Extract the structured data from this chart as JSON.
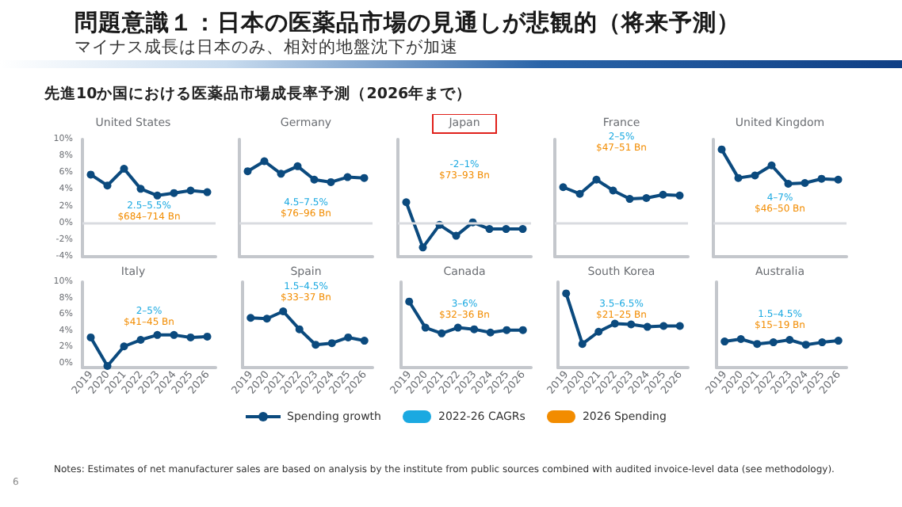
{
  "chart_data": [
    {
      "type": "other",
      "title": "問題意識１：日本の医薬品市場の見通しが悲観的（将来予測）",
      "subtitle": "マイナス成長は日本のみ、相対的地盤沈下が加速",
      "annotations": [
        "先進10か国における医薬品市場成長率予測（2026年まで）"
      ]
    },
    {
      "type": "line",
      "title": "United States",
      "categories": [
        "2019",
        "2020",
        "2021",
        "2022",
        "2023",
        "2024",
        "2025",
        "2026"
      ],
      "series": [
        {
          "color": "#0b4a7e",
          "values": [
            5.8,
            4.5,
            6.5,
            4.1,
            3.3,
            3.6,
            3.9,
            3.7
          ]
        }
      ],
      "ylim": [
        -4,
        10
      ],
      "yticks": [
        {
          "value": -4,
          "label": "-4%"
        },
        {
          "value": -2,
          "label": "-2%"
        },
        {
          "value": 0,
          "label": "0%"
        },
        {
          "value": 2,
          "label": "2%"
        },
        {
          "value": 4,
          "label": "4%"
        },
        {
          "value": 6,
          "label": "6%"
        },
        {
          "value": 8,
          "label": "8%"
        },
        {
          "value": 10,
          "label": "10%"
        }
      ],
      "tick_labels": "y",
      "marker": "circle",
      "ref_lines": [
        {
          "axis": "y",
          "value": 0,
          "color": "#d9dbe0"
        }
      ],
      "annotations": [
        "2.5–5.5%",
        "$684–714 Bn"
      ]
    },
    {
      "type": "line",
      "title": "Germany",
      "categories": [
        "2019",
        "2020",
        "2021",
        "2022",
        "2023",
        "2024",
        "2025",
        "2026"
      ],
      "series": [
        {
          "color": "#0b4a7e",
          "values": [
            6.2,
            7.4,
            5.9,
            6.8,
            5.2,
            4.9,
            5.5,
            5.4
          ]
        }
      ],
      "ylim": [
        -4,
        10
      ],
      "tick_labels": false,
      "marker": "circle",
      "ref_lines": [
        {
          "axis": "y",
          "value": 0,
          "color": "#d9dbe0"
        }
      ],
      "annotations": [
        "4.5–7.5%",
        "$76–96 Bn"
      ]
    },
    {
      "type": "line",
      "title": "Japan",
      "categories": [
        "2019",
        "2020",
        "2021",
        "2022",
        "2023",
        "2024",
        "2025",
        "2026"
      ],
      "series": [
        {
          "color": "#0b4a7e",
          "values": [
            2.5,
            -2.9,
            -0.2,
            -1.5,
            0.1,
            -0.7,
            -0.7,
            -0.7
          ]
        }
      ],
      "ylim": [
        -4,
        10
      ],
      "tick_labels": false,
      "marker": "circle",
      "ref_lines": [
        {
          "axis": "y",
          "value": 0,
          "color": "#d9dbe0"
        }
      ],
      "annotations": [
        "-2–1%",
        "$73–93 Bn"
      ]
    },
    {
      "type": "line",
      "title": "France",
      "categories": [
        "2019",
        "2020",
        "2021",
        "2022",
        "2023",
        "2024",
        "2025",
        "2026"
      ],
      "series": [
        {
          "color": "#0b4a7e",
          "values": [
            4.3,
            3.5,
            5.2,
            3.9,
            2.9,
            3.0,
            3.4,
            3.3
          ]
        }
      ],
      "ylim": [
        -4,
        10
      ],
      "tick_labels": false,
      "marker": "circle",
      "ref_lines": [
        {
          "axis": "y",
          "value": 0,
          "color": "#d9dbe0"
        }
      ],
      "annotations": [
        "2–5%",
        "$47–51 Bn"
      ]
    },
    {
      "type": "line",
      "title": "United Kingdom",
      "categories": [
        "2019",
        "2020",
        "2021",
        "2022",
        "2023",
        "2024",
        "2025",
        "2026"
      ],
      "series": [
        {
          "color": "#0b4a7e",
          "values": [
            8.8,
            5.4,
            5.7,
            6.9,
            4.7,
            4.8,
            5.3,
            5.2
          ]
        }
      ],
      "ylim": [
        -4,
        10
      ],
      "tick_labels": false,
      "marker": "circle",
      "ref_lines": [
        {
          "axis": "y",
          "value": 0,
          "color": "#d9dbe0"
        }
      ],
      "annotations": [
        "4–7%",
        "$46–50 Bn"
      ]
    },
    {
      "type": "line",
      "title": "Italy",
      "categories": [
        "2019",
        "2020",
        "2021",
        "2022",
        "2023",
        "2024",
        "2025",
        "2026"
      ],
      "series": [
        {
          "color": "#0b4a7e",
          "values": [
            3.2,
            -0.3,
            2.1,
            2.9,
            3.5,
            3.5,
            3.2,
            3.3
          ]
        }
      ],
      "ylim": [
        -0.5,
        10
      ],
      "yticks": [
        {
          "value": 0,
          "label": "0%"
        },
        {
          "value": 2,
          "label": "2%"
        },
        {
          "value": 4,
          "label": "4%"
        },
        {
          "value": 6,
          "label": "6%"
        },
        {
          "value": 8,
          "label": "8%"
        },
        {
          "value": 10,
          "label": "10%"
        }
      ],
      "marker": "circle",
      "annotations": [
        "2–5%",
        "$41–45 Bn"
      ]
    },
    {
      "type": "line",
      "title": "Spain",
      "categories": [
        "2019",
        "2020",
        "2021",
        "2022",
        "2023",
        "2024",
        "2025",
        "2026"
      ],
      "series": [
        {
          "color": "#0b4a7e",
          "values": [
            5.6,
            5.5,
            6.4,
            4.2,
            2.3,
            2.5,
            3.2,
            2.8
          ]
        }
      ],
      "ylim": [
        -0.5,
        10
      ],
      "tick_labels": "x",
      "marker": "circle",
      "annotations": [
        "1.5–4.5%",
        "$33–37 Bn"
      ]
    },
    {
      "type": "line",
      "title": "Canada",
      "categories": [
        "2019",
        "2020",
        "2021",
        "2022",
        "2023",
        "2024",
        "2025",
        "2026"
      ],
      "series": [
        {
          "color": "#0b4a7e",
          "values": [
            7.6,
            4.4,
            3.7,
            4.4,
            4.2,
            3.8,
            4.1,
            4.1
          ]
        }
      ],
      "ylim": [
        -0.5,
        10
      ],
      "tick_labels": "x",
      "marker": "circle",
      "annotations": [
        "3–6%",
        "$32–36 Bn"
      ]
    },
    {
      "type": "line",
      "title": "South Korea",
      "categories": [
        "2019",
        "2020",
        "2021",
        "2022",
        "2023",
        "2024",
        "2025",
        "2026"
      ],
      "series": [
        {
          "color": "#0b4a7e",
          "values": [
            8.6,
            2.4,
            3.9,
            4.9,
            4.8,
            4.5,
            4.6,
            4.6
          ]
        }
      ],
      "ylim": [
        -0.5,
        10
      ],
      "tick_labels": "x",
      "marker": "circle",
      "annotations": [
        "3.5–6.5%",
        "$21–25 Bn"
      ]
    },
    {
      "type": "line",
      "title": "Australia",
      "categories": [
        "2019",
        "2020",
        "2021",
        "2022",
        "2023",
        "2024",
        "2025",
        "2026"
      ],
      "series": [
        {
          "color": "#0b4a7e",
          "values": [
            2.7,
            3.0,
            2.4,
            2.6,
            2.9,
            2.3,
            2.6,
            2.8
          ]
        }
      ],
      "ylim": [
        -0.5,
        10
      ],
      "tick_labels": "x",
      "marker": "circle",
      "annotations": [
        "1.5–4.5%",
        "$15–19 Bn"
      ]
    },
    {
      "type": "other",
      "colors": [
        "#0b4a7e",
        "#1ba9e1",
        "#f28c00"
      ],
      "annotations": [
        "Spending growth",
        "2022-26 CAGRs",
        "2026 Spending",
        "Notes: Estimates of net manufacturer sales are based on analysis by the institute from public sources combined with audited invoice-level data (see methodology).",
        "6"
      ]
    }
  ]
}
